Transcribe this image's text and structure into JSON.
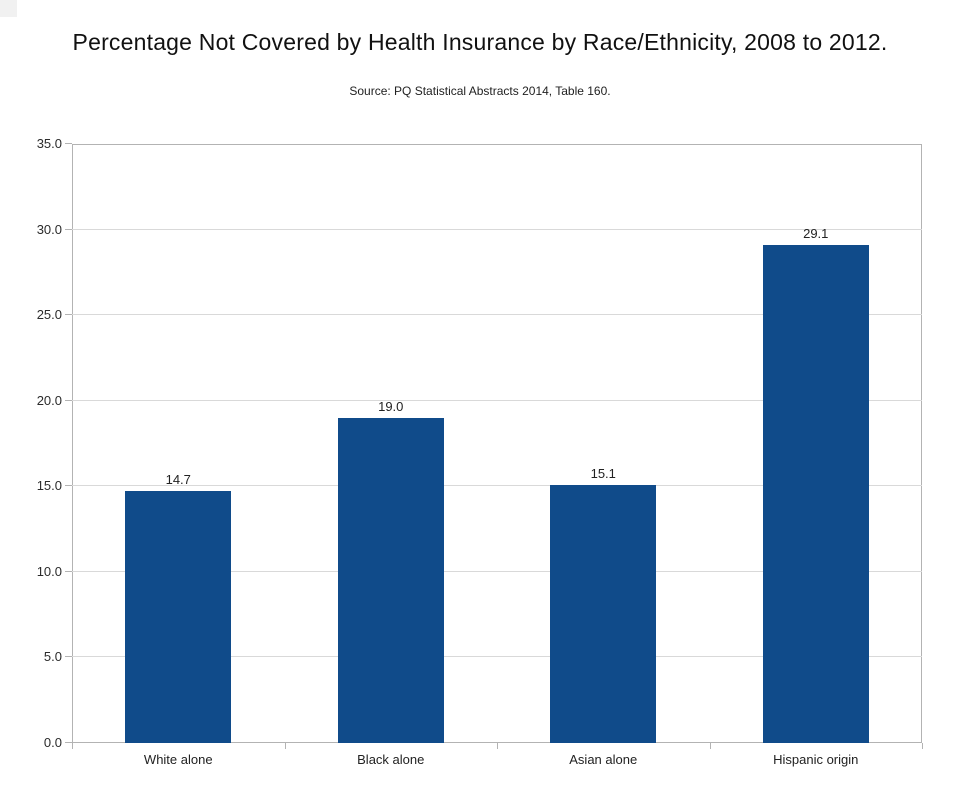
{
  "header": {
    "title": "Percentage Not Covered by Health Insurance by Race/Ethnicity, 2008 to 2012.",
    "subtitle": "Source: PQ Statistical Abstracts 2014, Table 160."
  },
  "chart_data": {
    "type": "bar",
    "title": "Percentage Not Covered by Health Insurance by Race/Ethnicity, 2008 to 2012.",
    "source": "Source: PQ Statistical Abstracts 2014, Table 160.",
    "categories": [
      "White alone",
      "Black alone",
      "Asian alone",
      "Hispanic origin"
    ],
    "values": [
      14.7,
      19.0,
      15.1,
      29.1
    ],
    "value_labels": [
      "14.7",
      "19.0",
      "15.1",
      "29.1"
    ],
    "xlabel": "",
    "ylabel": "",
    "ylim": [
      0,
      35
    ],
    "ytick_step": 5,
    "ytick_labels": [
      "0.0",
      "5.0",
      "10.0",
      "15.0",
      "20.0",
      "25.0",
      "30.0",
      "35.0"
    ],
    "grid": true,
    "legend": "none",
    "colors": {
      "bar": "#104b8a",
      "gridline": "#d9d9d9",
      "axis": "#b3b3b3",
      "text": "#222222",
      "title_text": "#111111"
    }
  }
}
